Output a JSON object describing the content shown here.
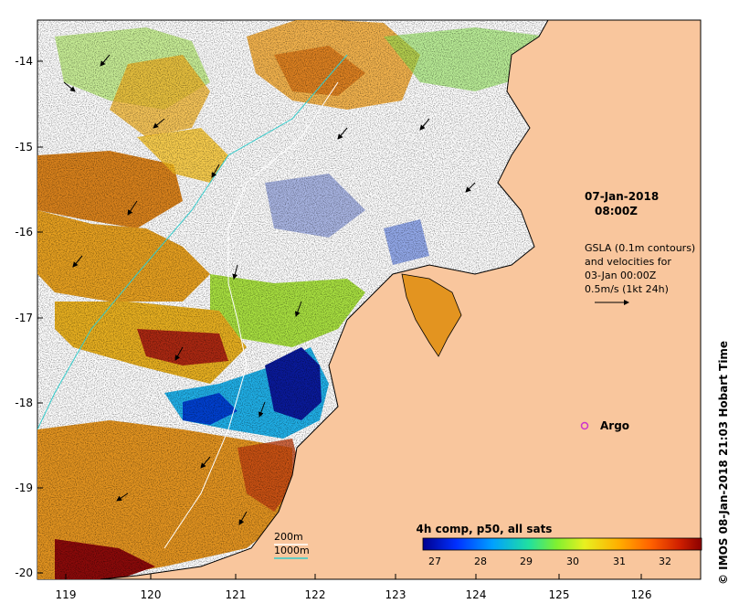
{
  "map": {
    "datetime_line1": "07-Jan-2018",
    "datetime_line2": "08:00Z",
    "gsla_lines": [
      "GSLA (0.1m contours)",
      "and velocities for",
      "03-Jan 00:00Z",
      "0.5m/s (1kt 24h)"
    ],
    "argo_label": "Argo",
    "credit": "© IMOS 08-Jan-2018 21:03 Hobart Time",
    "bathy_200_label": "200m",
    "bathy_1000_label": "1000m",
    "lon_ticks": [
      "119",
      "120",
      "121",
      "122",
      "123",
      "124",
      "125",
      "126"
    ],
    "lat_ticks": [
      "-14",
      "-15",
      "-16",
      "-17",
      "-18",
      "-19",
      "-20"
    ],
    "colors": {
      "land": "#f9c69d",
      "coast": "#000000",
      "bathy_200": "#ffffff",
      "bathy_1000": "#33cccc",
      "argo": "#cc33cc"
    }
  },
  "colorbar": {
    "title": "4h comp, p50, all sats",
    "ticks": [
      "27",
      "28",
      "29",
      "30",
      "31",
      "32"
    ],
    "colors": [
      "#00008f",
      "#0040ff",
      "#00a0ff",
      "#20e0a0",
      "#70f040",
      "#e0f020",
      "#ffc000",
      "#ff7000",
      "#e03000",
      "#900000"
    ]
  }
}
